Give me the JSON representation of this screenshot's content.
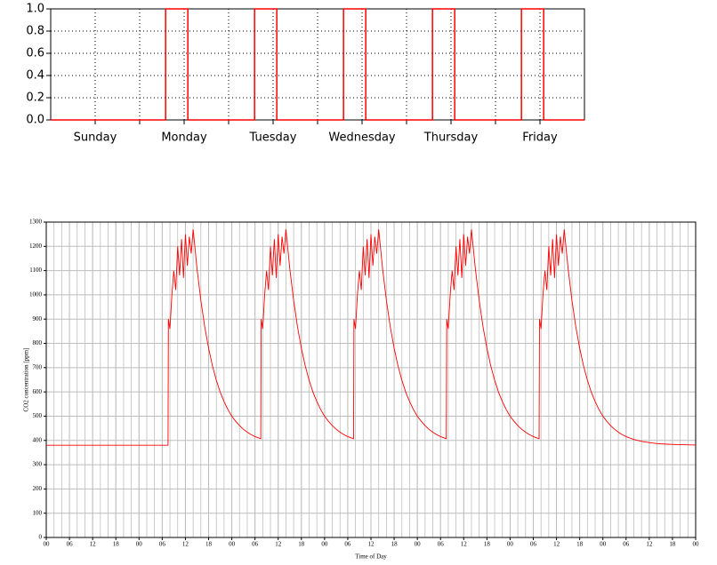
{
  "chart_data": [
    {
      "type": "line",
      "color": "#ff0000",
      "grid": true,
      "xlim": [
        0,
        144
      ],
      "ylim": [
        0,
        1
      ],
      "xticks": [
        {
          "value": 12,
          "label": "Sunday"
        },
        {
          "value": 36,
          "label": "Monday"
        },
        {
          "value": 60,
          "label": "Tuesday"
        },
        {
          "value": 84,
          "label": "Wednesday"
        },
        {
          "value": 108,
          "label": "Thursday"
        },
        {
          "value": 132,
          "label": "Friday"
        }
      ],
      "yticks": [
        {
          "value": 0,
          "label": "0.0"
        },
        0.2,
        0.4,
        0.6,
        0.8,
        {
          "value": 1,
          "label": "1.0"
        }
      ],
      "x": [
        0,
        31,
        31,
        37,
        37,
        55,
        55,
        61,
        61,
        79,
        79,
        85,
        85,
        103,
        103,
        109,
        109,
        127,
        127,
        133,
        133,
        144
      ],
      "values": [
        0,
        0,
        1,
        1,
        0,
        0,
        1,
        1,
        0,
        0,
        1,
        1,
        0,
        0,
        1,
        1,
        0,
        0,
        1,
        1,
        0,
        0
      ]
    },
    {
      "type": "line",
      "color": "#ff0000",
      "grid": true,
      "xlabel": "Time of Day",
      "ylabel": "CO2 concentration [ppm]",
      "xlim": [
        0,
        168
      ],
      "ylim": [
        0,
        1300
      ],
      "xticks": [
        {
          "value": 0,
          "label": "00"
        },
        {
          "value": 6,
          "label": "06"
        },
        12,
        18,
        {
          "value": 24,
          "label": "00"
        },
        {
          "value": 30,
          "label": "06"
        },
        {
          "value": 36,
          "label": "12"
        },
        {
          "value": 42,
          "label": "18"
        },
        {
          "value": 48,
          "label": "00"
        },
        {
          "value": 54,
          "label": "06"
        },
        {
          "value": 60,
          "label": "12"
        },
        {
          "value": 66,
          "label": "18"
        },
        {
          "value": 72,
          "label": "00"
        },
        {
          "value": 78,
          "label": "06"
        },
        {
          "value": 84,
          "label": "12"
        },
        {
          "value": 90,
          "label": "18"
        },
        {
          "value": 96,
          "label": "00"
        },
        {
          "value": 102,
          "label": "06"
        },
        {
          "value": 108,
          "label": "12"
        },
        {
          "value": 114,
          "label": "18"
        },
        {
          "value": 120,
          "label": "00"
        },
        {
          "value": 126,
          "label": "06"
        },
        {
          "value": 132,
          "label": "12"
        },
        {
          "value": 138,
          "label": "18"
        },
        {
          "value": 144,
          "label": "00"
        },
        {
          "value": 150,
          "label": "06"
        },
        {
          "value": 156,
          "label": "12"
        },
        {
          "value": 162,
          "label": "18"
        },
        {
          "value": 168,
          "label": "00"
        }
      ],
      "yticks": [
        0,
        100,
        200,
        300,
        400,
        500,
        600,
        700,
        800,
        900,
        1000,
        1100,
        1200,
        1300
      ],
      "x": [
        0,
        31.5,
        31.6,
        32,
        32.5,
        33,
        33.5,
        34,
        34.5,
        35,
        35.5,
        36,
        36.5,
        37,
        37.5,
        38,
        39,
        40,
        41,
        42,
        43,
        44,
        45,
        46,
        47,
        48,
        49,
        50,
        51,
        52,
        53,
        54,
        55,
        55.5,
        55.6,
        56,
        56.5,
        57,
        57.5,
        58,
        58.5,
        59,
        59.5,
        60,
        60.5,
        61,
        61.5,
        62,
        63,
        64,
        65,
        66,
        67,
        68,
        69,
        70,
        71,
        72,
        73,
        74,
        75,
        76,
        77,
        78,
        79,
        79.5,
        79.6,
        80,
        80.5,
        81,
        81.5,
        82,
        82.5,
        83,
        83.5,
        84,
        84.5,
        85,
        85.5,
        86,
        87,
        88,
        89,
        90,
        91,
        92,
        93,
        94,
        95,
        96,
        97,
        98,
        99,
        100,
        101,
        102,
        103,
        103.5,
        103.6,
        104,
        104.5,
        105,
        105.5,
        106,
        106.5,
        107,
        107.5,
        108,
        108.5,
        109,
        109.5,
        110,
        111,
        112,
        113,
        114,
        115,
        116,
        117,
        118,
        119,
        120,
        121,
        122,
        123,
        124,
        125,
        126,
        127,
        127.5,
        127.6,
        128,
        128.5,
        129,
        129.5,
        130,
        130.5,
        131,
        131.5,
        132,
        132.5,
        133,
        133.5,
        134,
        135,
        136,
        137,
        138,
        139,
        140,
        141,
        142,
        143,
        144,
        145,
        146,
        147,
        148,
        149,
        150,
        151,
        152,
        154,
        156,
        158,
        160,
        163,
        168
      ],
      "values": [
        380,
        380,
        900,
        860,
        1000,
        1100,
        1020,
        1200,
        1080,
        1230,
        1070,
        1250,
        1120,
        1240,
        1170,
        1270,
        1109,
        977,
        868,
        780,
        707,
        648,
        599,
        560,
        527,
        500,
        479,
        461,
        446,
        434,
        424,
        416,
        410,
        407,
        900,
        860,
        1000,
        1100,
        1020,
        1200,
        1080,
        1230,
        1070,
        1250,
        1120,
        1240,
        1170,
        1270,
        1109,
        977,
        868,
        780,
        707,
        648,
        599,
        560,
        527,
        500,
        479,
        461,
        446,
        434,
        424,
        416,
        410,
        407,
        900,
        860,
        1000,
        1100,
        1020,
        1200,
        1080,
        1230,
        1070,
        1250,
        1120,
        1240,
        1170,
        1270,
        1109,
        977,
        868,
        780,
        707,
        648,
        599,
        560,
        527,
        500,
        479,
        461,
        446,
        434,
        424,
        416,
        410,
        407,
        900,
        860,
        1000,
        1100,
        1020,
        1200,
        1080,
        1230,
        1070,
        1250,
        1120,
        1240,
        1170,
        1270,
        1109,
        977,
        868,
        780,
        707,
        648,
        599,
        560,
        527,
        500,
        479,
        461,
        446,
        434,
        424,
        416,
        410,
        407,
        900,
        860,
        1000,
        1100,
        1020,
        1200,
        1080,
        1230,
        1070,
        1250,
        1120,
        1240,
        1170,
        1270,
        1109,
        977,
        868,
        780,
        707,
        648,
        599,
        560,
        527,
        500,
        479,
        461,
        446,
        434,
        424,
        416,
        410,
        404,
        396,
        391,
        387,
        385,
        383,
        381
      ]
    }
  ]
}
